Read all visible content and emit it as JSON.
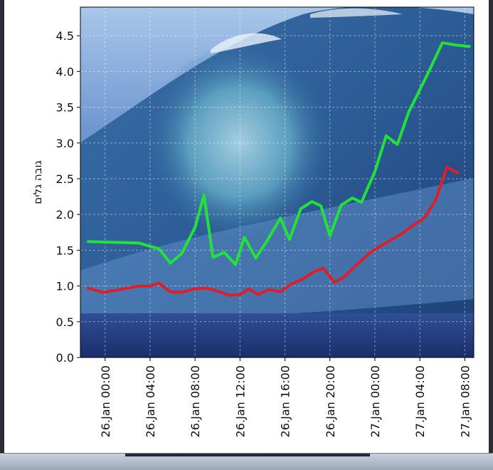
{
  "chart_data": {
    "type": "line",
    "title": "",
    "xlabel": "",
    "ylabel": "גובה גלים",
    "ylim": [
      0,
      4.9
    ],
    "yticks": [
      "0.0",
      "0.5",
      "1.0",
      "1.5",
      "2.0",
      "2.5",
      "3.0",
      "3.5",
      "4.0",
      "4.5"
    ],
    "xlim": [
      "26.Jan 22:00 -1d",
      "27.Jan 08:30"
    ],
    "xticks": [
      "26.Jan 00:00",
      "26.Jan 04:00",
      "26.Jan 08:00",
      "26.Jan 12:00",
      "26.Jan 16:00",
      "26.Jan 20:00",
      "27.Jan 00:00",
      "27.Jan 04:00",
      "27.Jan 08:00"
    ],
    "grid": true,
    "series": [
      {
        "color": "#22e23a",
        "hours": [
          -1.5,
          3,
          4.8,
          5.8,
          6.8,
          8.0,
          8.8,
          9.6,
          10.6,
          11.6,
          12.4,
          13.4,
          14.4,
          15.6,
          16.4,
          17.4,
          18.4,
          19.2,
          20.0,
          21.0,
          22.0,
          22.8,
          24.0,
          25.0,
          26.0,
          27.0,
          27.8,
          28.8,
          30.0,
          31.2,
          32.4
        ],
        "values": [
          1.62,
          1.6,
          1.52,
          1.32,
          1.45,
          1.82,
          2.27,
          1.4,
          1.47,
          1.3,
          1.68,
          1.39,
          1.63,
          1.95,
          1.65,
          2.08,
          2.18,
          2.12,
          1.7,
          2.13,
          2.23,
          2.17,
          2.6,
          3.1,
          2.98,
          3.43,
          3.68,
          4.0,
          4.4,
          4.37,
          4.35
        ]
      },
      {
        "color": "#dd1f2a",
        "hours": [
          -1.5,
          -0.2,
          1.0,
          2.0,
          3.0,
          4.0,
          4.8,
          5.8,
          6.8,
          8.0,
          9.0,
          10.0,
          11.0,
          12.0,
          12.8,
          13.6,
          14.6,
          15.6,
          16.6,
          17.6,
          18.6,
          19.4,
          20.4,
          21.2,
          22.4,
          23.6,
          24.4,
          25.4,
          26.4,
          27.4,
          28.4,
          29.4,
          30.4,
          31.4
        ],
        "values": [
          0.97,
          0.91,
          0.94,
          0.97,
          1.0,
          1.0,
          1.04,
          0.92,
          0.91,
          0.96,
          0.97,
          0.93,
          0.87,
          0.88,
          0.96,
          0.88,
          0.95,
          0.92,
          1.03,
          1.1,
          1.2,
          1.25,
          1.05,
          1.12,
          1.3,
          1.47,
          1.55,
          1.64,
          1.73,
          1.85,
          1.95,
          2.2,
          2.66,
          2.58
        ]
      }
    ]
  }
}
